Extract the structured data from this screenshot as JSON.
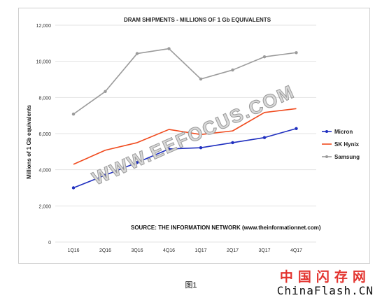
{
  "chart_data": {
    "type": "line",
    "title": "DRAM SHIPMENTS - MILLIONS OF 1 Gb EQUIVALENTS",
    "xlabel": "",
    "ylabel": "Millions of 1 Gb equivalents",
    "categories": [
      "1Q16",
      "2Q16",
      "3Q16",
      "4Q16",
      "1Q17",
      "2Q17",
      "3Q17",
      "4Q17"
    ],
    "ylim": [
      0,
      12000
    ],
    "yticks": [
      0,
      2000,
      4000,
      6000,
      8000,
      10000,
      12000
    ],
    "ytick_labels": [
      "0",
      "2,000",
      "4,000",
      "6,000",
      "8,000",
      "10,000",
      "12,000"
    ],
    "grid": "horizontal",
    "legend_position": "right",
    "series": [
      {
        "name": "Micron",
        "color": "#1f2fbf",
        "markers": true,
        "values": [
          3000,
          3700,
          4400,
          5150,
          5220,
          5500,
          5780,
          6280
        ]
      },
      {
        "name": "SK Hynix",
        "color": "#f04a1d",
        "markers": false,
        "values": [
          4300,
          5080,
          5500,
          6230,
          5950,
          6150,
          7170,
          7380
        ]
      },
      {
        "name": "Samsung",
        "color": "#9b9b9b",
        "markers": true,
        "values": [
          7080,
          8330,
          10430,
          10700,
          9020,
          9520,
          10250,
          10480
        ]
      }
    ],
    "annotation": "SOURCE: THE INFORMATION NETWORK (www.theinformationnet.com)"
  },
  "watermark": "WWW.EEFOCUS.COM",
  "caption": "图1",
  "brand": {
    "cn": "中国闪存网",
    "en": "ChinaFlash.CN"
  }
}
